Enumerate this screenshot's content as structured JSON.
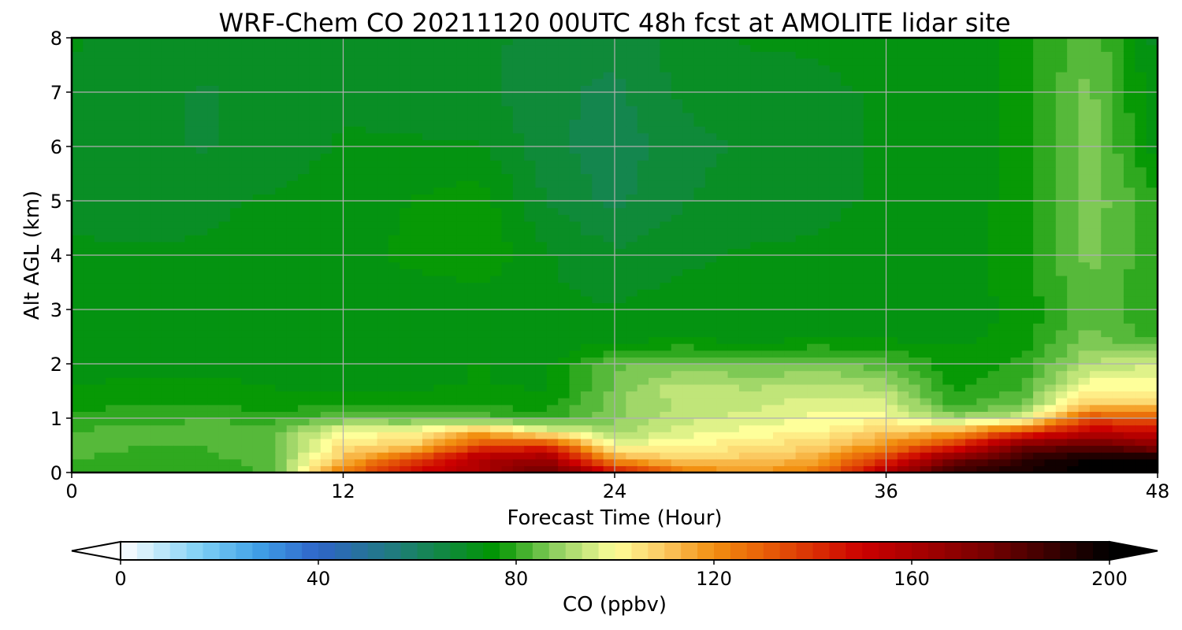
{
  "chart_data": {
    "type": "heatmap",
    "title": "WRF-Chem CO  20211120 00UTC 48h fcst at AMOLITE lidar site",
    "xlabel": "Forecast Time (Hour)",
    "ylabel": "Alt AGL (km)",
    "xlim": [
      0,
      48
    ],
    "ylim": [
      0,
      8
    ],
    "xticks": [
      0,
      12,
      24,
      36,
      48
    ],
    "yticks": [
      0,
      1,
      2,
      3,
      4,
      5,
      6,
      7,
      8
    ],
    "grid": true,
    "colorbar": {
      "label": "CO  (ppbv)",
      "range": [
        0,
        200
      ],
      "ticks": [
        0,
        40,
        80,
        120,
        160,
        200
      ],
      "extend": "both",
      "colors": [
        {
          "v": 0,
          "c": "#ffffff"
        },
        {
          "v": 16,
          "c": "#7fd1f5"
        },
        {
          "v": 28,
          "c": "#3f9fe6"
        },
        {
          "v": 40,
          "c": "#2f64c8"
        },
        {
          "v": 56,
          "c": "#1f7d7a"
        },
        {
          "v": 76,
          "c": "#009600"
        },
        {
          "v": 88,
          "c": "#8fd060"
        },
        {
          "v": 100,
          "c": "#ffff9a"
        },
        {
          "v": 110,
          "c": "#fbc860"
        },
        {
          "v": 120,
          "c": "#f28f10"
        },
        {
          "v": 130,
          "c": "#e86008"
        },
        {
          "v": 150,
          "c": "#cc0000"
        },
        {
          "v": 175,
          "c": "#780000"
        },
        {
          "v": 200,
          "c": "#000000"
        }
      ]
    },
    "x": [
      0,
      3,
      6,
      9,
      12,
      15,
      18,
      21,
      24,
      27,
      30,
      33,
      36,
      39,
      42,
      45,
      48
    ],
    "y": [
      0,
      0.25,
      0.5,
      0.75,
      1.0,
      1.25,
      1.5,
      2.0,
      2.5,
      3,
      4,
      5,
      6,
      7,
      8
    ],
    "z": [
      [
        80,
        78,
        78,
        82,
        125,
        150,
        158,
        180,
        150,
        125,
        118,
        125,
        160,
        190,
        195,
        200,
        200
      ],
      [
        82,
        80,
        80,
        85,
        112,
        135,
        160,
        165,
        118,
        108,
        110,
        115,
        140,
        175,
        190,
        200,
        200
      ],
      [
        82,
        82,
        82,
        85,
        105,
        108,
        135,
        140,
        98,
        102,
        104,
        108,
        120,
        140,
        175,
        180,
        170
      ],
      [
        82,
        82,
        84,
        85,
        100,
        100,
        115,
        100,
        90,
        96,
        100,
        101,
        110,
        115,
        135,
        155,
        150
      ],
      [
        80,
        81,
        81,
        80,
        85,
        84,
        84,
        80,
        88,
        94,
        96,
        99,
        100,
        90,
        95,
        135,
        130
      ],
      [
        77,
        78,
        78,
        77,
        77,
        77,
        77,
        77,
        87,
        92,
        94,
        97,
        96,
        80,
        86,
        110,
        110
      ],
      [
        75,
        76,
        76,
        75,
        75,
        75,
        75,
        75,
        86,
        95,
        92,
        94,
        92,
        78,
        82,
        102,
        102
      ],
      [
        74,
        74,
        74,
        74,
        74,
        74,
        75,
        74,
        84,
        86,
        85,
        86,
        83,
        76,
        79,
        92,
        95
      ],
      [
        73,
        73,
        73,
        73,
        73,
        72,
        73,
        72,
        73,
        74,
        73,
        74,
        74,
        74,
        76,
        86,
        80
      ],
      [
        74,
        73,
        73,
        73,
        73,
        72,
        72,
        72,
        72,
        73,
        72,
        73,
        73,
        73,
        76,
        84,
        78
      ],
      [
        72,
        72,
        72,
        73,
        73,
        76,
        78,
        72,
        69,
        71,
        72,
        72,
        73,
        73,
        77,
        86,
        79
      ],
      [
        71,
        70,
        71,
        72,
        73,
        75,
        77,
        68,
        64,
        68,
        70,
        71,
        72,
        72,
        77,
        87,
        79
      ],
      [
        70,
        69,
        68,
        70,
        72,
        72,
        72,
        66,
        63,
        67,
        69,
        71,
        72,
        72,
        76,
        87,
        73
      ],
      [
        71,
        69,
        68,
        70,
        71,
        70,
        69,
        66,
        64,
        69,
        70,
        71,
        72,
        73,
        76,
        86,
        72
      ],
      [
        72,
        70,
        69,
        71,
        71,
        70,
        70,
        66,
        66,
        70,
        72,
        72,
        73,
        73,
        76,
        85,
        70
      ]
    ]
  }
}
